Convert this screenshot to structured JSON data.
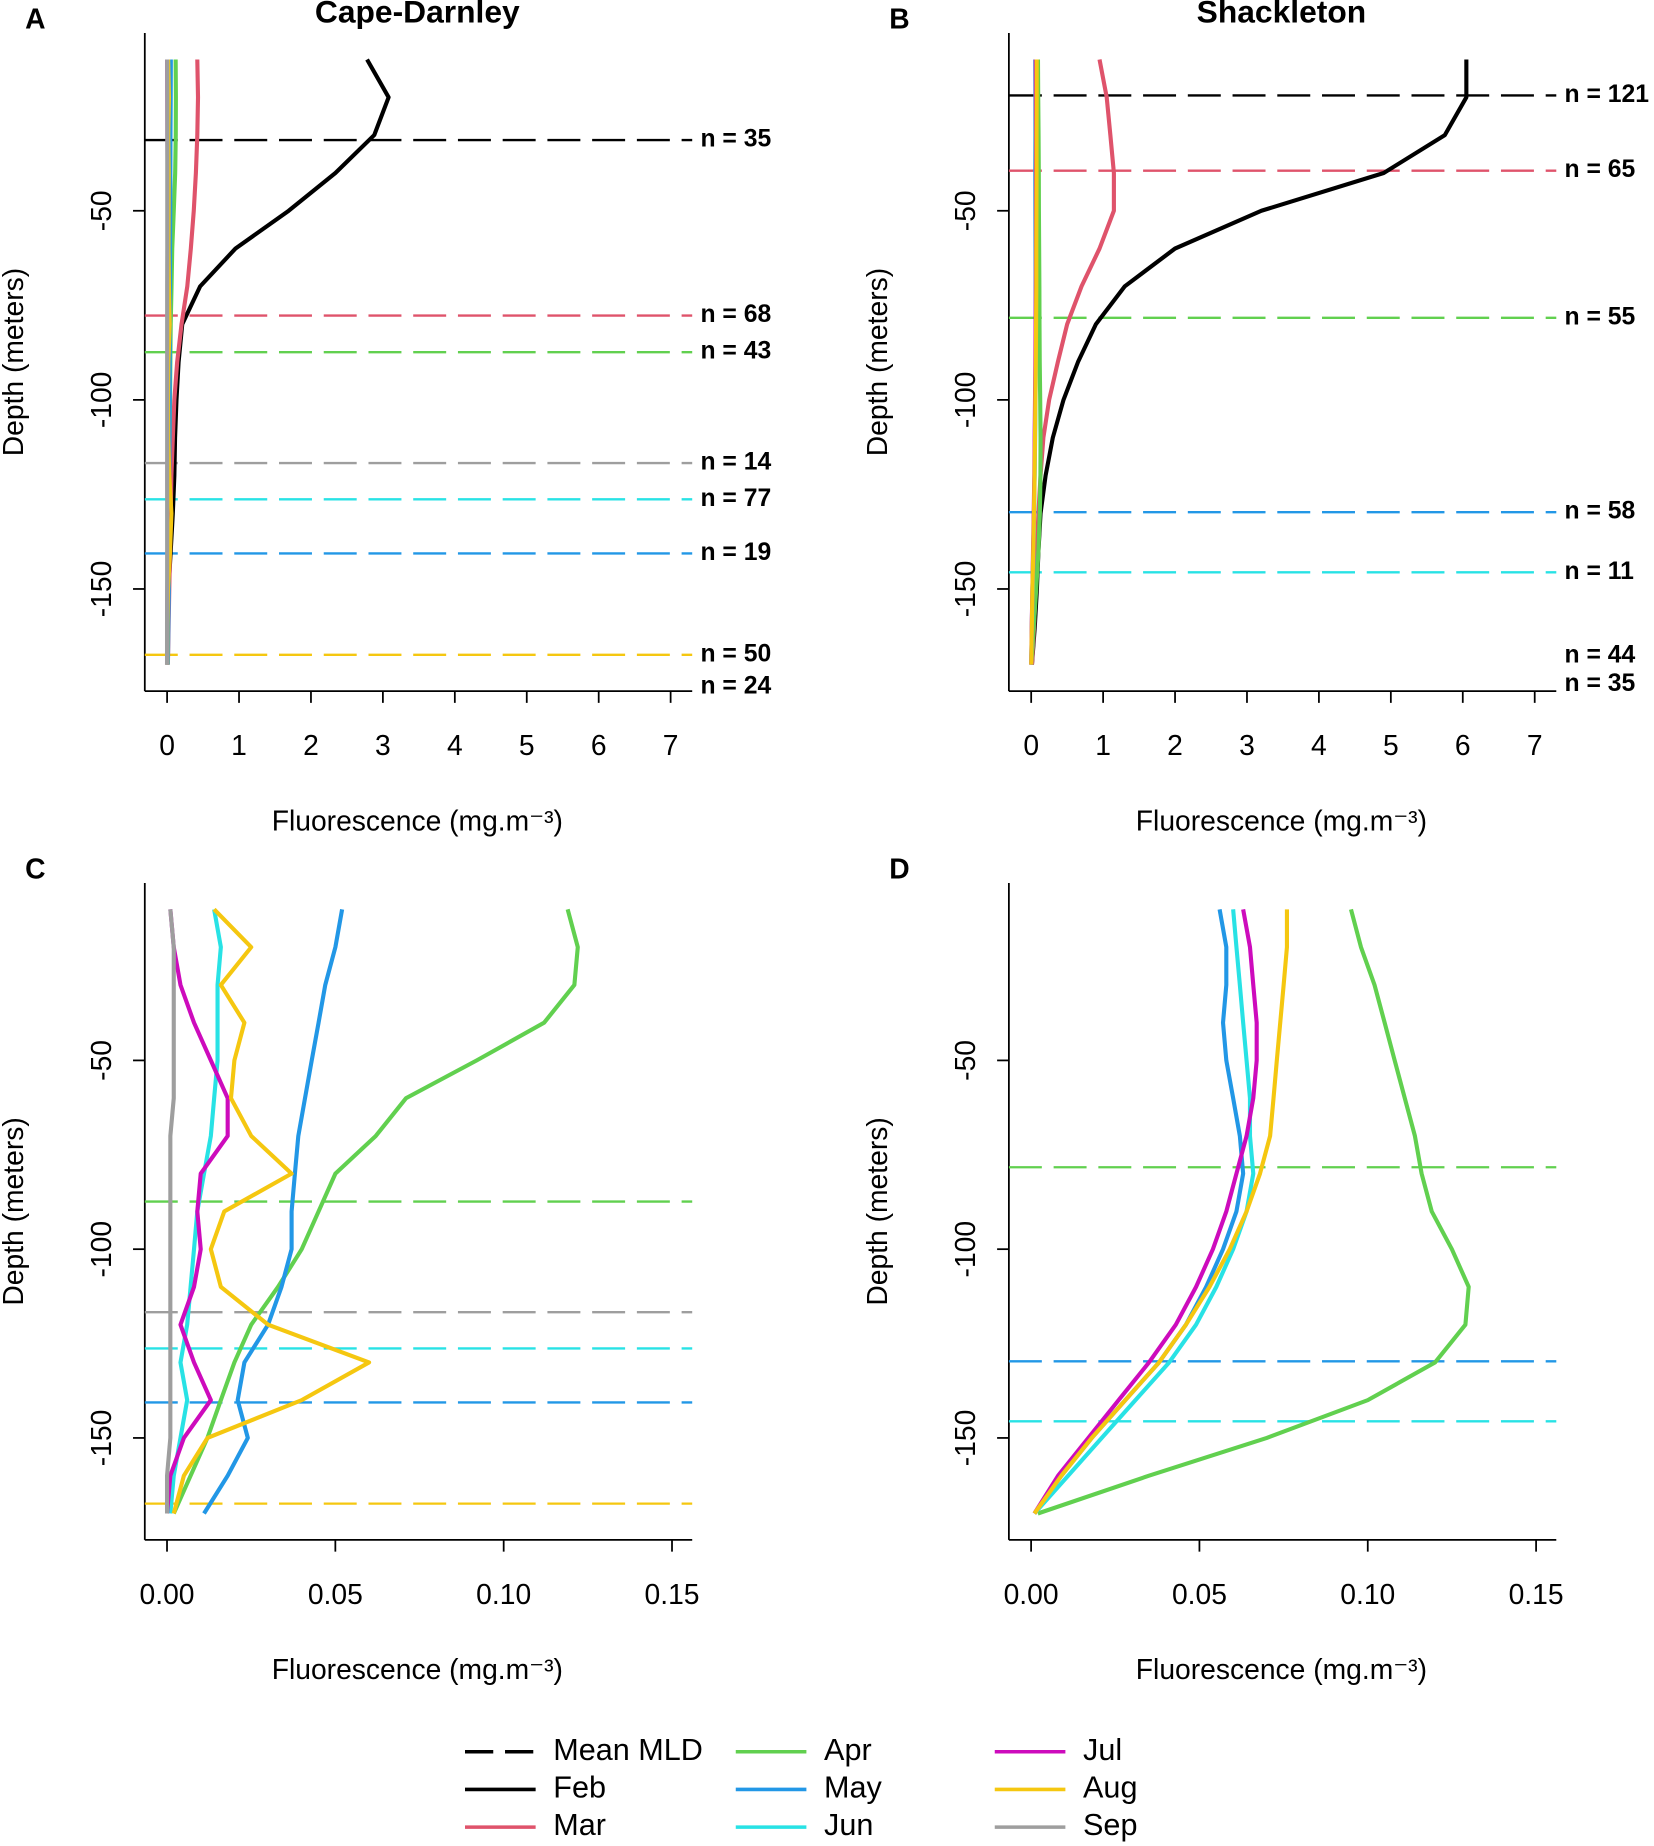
{
  "chart_data": [
    {
      "type": "line",
      "label": "A",
      "title": "Cape-Darnley",
      "xlabel": "Fluorescence (mg.m⁻³)",
      "ylabel": "Depth (meters)",
      "xlim": [
        -0.31,
        7.3
      ],
      "xticks": [
        0,
        1,
        2,
        3,
        4,
        5,
        6,
        7
      ],
      "ylim": [
        -177,
        -3
      ],
      "yticks": [
        -150,
        -100,
        -50
      ],
      "y": [
        -10,
        -20,
        -30,
        -40,
        -50,
        -60,
        -70,
        -80,
        -90,
        -100,
        -110,
        -120,
        -130,
        -140,
        -150,
        -160,
        -170
      ],
      "series": [
        {
          "color": "#000000",
          "values": [
            2.78,
            3.08,
            2.88,
            2.34,
            1.69,
            0.95,
            0.46,
            0.21,
            0.16,
            0.13,
            0.11,
            0.1,
            0.08,
            0.05,
            0.02,
            0.01,
            0.0
          ]
        },
        {
          "color": "#DF536B",
          "values": [
            0.42,
            0.43,
            0.42,
            0.4,
            0.37,
            0.33,
            0.28,
            0.2,
            0.14,
            0.1,
            0.08,
            0.06,
            0.05,
            0.04,
            0.03,
            0.02,
            0.01
          ]
        },
        {
          "color": "#61D04F",
          "values": [
            0.119,
            0.122,
            0.121,
            0.112,
            0.092,
            0.071,
            0.062,
            0.05,
            0.045,
            0.04,
            0.033,
            0.025,
            0.02,
            0.016,
            0.012,
            0.007,
            0.002
          ]
        },
        {
          "color": "#2297E6",
          "values": [
            0.052,
            0.05,
            0.047,
            0.045,
            0.043,
            0.041,
            0.039,
            0.038,
            0.037,
            0.037,
            0.034,
            0.03,
            0.023,
            0.021,
            0.024,
            0.018,
            0.011
          ]
        },
        {
          "color": "#28E2E5",
          "values": [
            0.014,
            0.016,
            0.015,
            0.015,
            0.015,
            0.014,
            0.013,
            0.011,
            0.009,
            0.008,
            0.007,
            0.006,
            0.004,
            0.006,
            0.004,
            0.002,
            0.001
          ]
        },
        {
          "color": "#CD0BBC",
          "values": [
            0.001,
            0.002,
            0.004,
            0.008,
            0.013,
            0.018,
            0.018,
            0.01,
            0.009,
            0.01,
            0.008,
            0.004,
            0.008,
            0.013,
            0.005,
            0.001,
            0.0
          ]
        },
        {
          "color": "#F5C710",
          "values": [
            0.014,
            0.025,
            0.016,
            0.023,
            0.02,
            0.019,
            0.025,
            0.037,
            0.017,
            0.013,
            0.016,
            0.03,
            0.06,
            0.04,
            0.012,
            0.005,
            0.002
          ]
        },
        {
          "color": "#9E9E9E",
          "values": [
            0.001,
            0.002,
            0.002,
            0.002,
            0.002,
            0.002,
            0.001,
            0.001,
            0.001,
            0.001,
            0.001,
            0.001,
            0.001,
            0.001,
            0.001,
            0.0,
            0.0
          ]
        }
      ],
      "mld": [
        {
          "color": "#000000",
          "depth": -31.3,
          "label": "n = 35"
        },
        {
          "color": "#DF536B",
          "depth": -77.7,
          "label": "n = 68"
        },
        {
          "color": "#61D04F",
          "depth": -87.4,
          "label": "n = 43"
        },
        {
          "color": "#9E9E9E",
          "depth": -116.7,
          "label": "n = 14"
        },
        {
          "color": "#28E2E5",
          "depth": -126.3,
          "label": "n = 77"
        },
        {
          "color": "#2297E6",
          "depth": -140.6,
          "label": "n = 19"
        },
        {
          "color": "#F5C710",
          "depth": -167.4,
          "label": "n = 50"
        },
        {
          "color": "#CD0BBC",
          "depth": -175.9,
          "label": "n = 24",
          "line": false
        }
      ]
    },
    {
      "type": "line",
      "label": "B",
      "title": "Shackleton",
      "xlabel": "Fluorescence (mg.m⁻³)",
      "ylabel": "Depth (meters)",
      "xlim": [
        -0.31,
        7.3
      ],
      "xticks": [
        0,
        1,
        2,
        3,
        4,
        5,
        6,
        7
      ],
      "ylim": [
        -177,
        -3
      ],
      "yticks": [
        -150,
        -100,
        -50
      ],
      "y": [
        -10,
        -20,
        -30,
        -40,
        -50,
        -60,
        -70,
        -80,
        -90,
        -100,
        -110,
        -120,
        -130,
        -140,
        -150,
        -160,
        -170
      ],
      "series": [
        {
          "color": "#000000",
          "values": [
            6.05,
            6.05,
            5.75,
            4.9,
            3.2,
            2.0,
            1.3,
            0.9,
            0.65,
            0.45,
            0.3,
            0.2,
            0.13,
            0.1,
            0.08,
            0.05,
            0.01
          ]
        },
        {
          "color": "#DF536B",
          "values": [
            0.95,
            1.05,
            1.1,
            1.15,
            1.15,
            0.95,
            0.7,
            0.5,
            0.37,
            0.25,
            0.17,
            0.13,
            0.1,
            0.08,
            0.06,
            0.04,
            0.01
          ]
        },
        {
          "color": "#61D04F",
          "values": [
            0.095,
            0.098,
            0.102,
            0.105,
            0.108,
            0.111,
            0.114,
            0.116,
            0.119,
            0.125,
            0.13,
            0.129,
            0.12,
            0.1,
            0.07,
            0.035,
            0.002
          ]
        },
        {
          "color": "#2297E6",
          "values": [
            0.056,
            0.058,
            0.058,
            0.057,
            0.058,
            0.06,
            0.062,
            0.063,
            0.061,
            0.057,
            0.052,
            0.046,
            0.038,
            0.028,
            0.018,
            0.009,
            0.001
          ]
        },
        {
          "color": "#28E2E5",
          "values": [
            0.06,
            0.061,
            0.062,
            0.063,
            0.064,
            0.065,
            0.065,
            0.066,
            0.064,
            0.06,
            0.055,
            0.049,
            0.041,
            0.031,
            0.021,
            0.011,
            0.001
          ]
        },
        {
          "color": "#CD0BBC",
          "values": [
            0.063,
            0.065,
            0.066,
            0.067,
            0.067,
            0.066,
            0.064,
            0.061,
            0.058,
            0.054,
            0.049,
            0.043,
            0.035,
            0.026,
            0.017,
            0.008,
            0.001
          ]
        },
        {
          "color": "#F5C710",
          "values": [
            0.076,
            0.076,
            0.075,
            0.074,
            0.073,
            0.072,
            0.071,
            0.068,
            0.064,
            0.059,
            0.053,
            0.046,
            0.038,
            0.028,
            0.018,
            0.009,
            0.001
          ]
        }
      ],
      "mld": [
        {
          "color": "#000000",
          "depth": -19.5,
          "label": "n = 121"
        },
        {
          "color": "#DF536B",
          "depth": -39.4,
          "label": "n = 65"
        },
        {
          "color": "#61D04F",
          "depth": -78.3,
          "label": "n = 55"
        },
        {
          "color": "#2297E6",
          "depth": -129.7,
          "label": "n = 58"
        },
        {
          "color": "#28E2E5",
          "depth": -145.6,
          "label": "n = 11"
        },
        {
          "color": "#CD0BBC",
          "depth": -167.7,
          "label": "n = 44",
          "line": false
        },
        {
          "color": "#F5C710",
          "depth": -175.2,
          "label": "n = 35",
          "line": false
        }
      ]
    },
    {
      "type": "line",
      "label": "C",
      "xlabel": "Fluorescence (mg.m⁻³)",
      "ylabel": "Depth (meters)",
      "xlim": [
        -0.0066,
        0.156
      ],
      "xticks": [
        {
          "value": 0,
          "label": "0.00"
        },
        {
          "value": 0.05,
          "label": "0.05"
        },
        {
          "value": 0.1,
          "label": "0.10"
        },
        {
          "value": 0.15,
          "label": "0.15"
        }
      ],
      "ylim": [
        -177,
        -3
      ],
      "yticks": [
        -150,
        -100,
        -50
      ],
      "y": [
        -10,
        -20,
        -30,
        -40,
        -50,
        -60,
        -70,
        -80,
        -90,
        -100,
        -110,
        -120,
        -130,
        -140,
        -150,
        -160,
        -170
      ],
      "series": [
        {
          "color": "#61D04F",
          "values": [
            0.119,
            0.122,
            0.121,
            0.112,
            0.092,
            0.071,
            0.062,
            0.05,
            0.045,
            0.04,
            0.033,
            0.025,
            0.02,
            0.016,
            0.012,
            0.007,
            0.002
          ]
        },
        {
          "color": "#2297E6",
          "values": [
            0.052,
            0.05,
            0.047,
            0.045,
            0.043,
            0.041,
            0.039,
            0.038,
            0.037,
            0.037,
            0.034,
            0.03,
            0.023,
            0.021,
            0.024,
            0.018,
            0.011
          ]
        },
        {
          "color": "#28E2E5",
          "values": [
            0.014,
            0.016,
            0.015,
            0.015,
            0.015,
            0.014,
            0.013,
            0.011,
            0.009,
            0.008,
            0.007,
            0.006,
            0.004,
            0.006,
            0.004,
            0.002,
            0.001
          ]
        },
        {
          "color": "#CD0BBC",
          "values": [
            0.001,
            0.002,
            0.004,
            0.008,
            0.013,
            0.018,
            0.018,
            0.01,
            0.009,
            0.01,
            0.008,
            0.004,
            0.008,
            0.013,
            0.005,
            0.001,
            0.0
          ]
        },
        {
          "color": "#F5C710",
          "values": [
            0.014,
            0.025,
            0.016,
            0.023,
            0.02,
            0.019,
            0.025,
            0.037,
            0.017,
            0.013,
            0.016,
            0.03,
            0.06,
            0.04,
            0.012,
            0.005,
            0.002
          ]
        },
        {
          "color": "#9E9E9E",
          "values": [
            0.001,
            0.002,
            0.002,
            0.002,
            0.002,
            0.002,
            0.001,
            0.001,
            0.001,
            0.001,
            0.001,
            0.001,
            0.001,
            0.001,
            0.001,
            0.0,
            0.0
          ]
        }
      ],
      "mld": [
        {
          "color": "#61D04F",
          "depth": -87.4
        },
        {
          "color": "#9E9E9E",
          "depth": -116.7
        },
        {
          "color": "#28E2E5",
          "depth": -126.3
        },
        {
          "color": "#2297E6",
          "depth": -140.6
        },
        {
          "color": "#F5C710",
          "depth": -167.4
        }
      ]
    },
    {
      "type": "line",
      "label": "D",
      "xlabel": "Fluorescence (mg.m⁻³)",
      "ylabel": "Depth (meters)",
      "xlim": [
        -0.0066,
        0.156
      ],
      "xticks": [
        {
          "value": 0,
          "label": "0.00"
        },
        {
          "value": 0.05,
          "label": "0.05"
        },
        {
          "value": 0.1,
          "label": "0.10"
        },
        {
          "value": 0.15,
          "label": "0.15"
        }
      ],
      "ylim": [
        -177,
        -3
      ],
      "yticks": [
        -150,
        -100,
        -50
      ],
      "y": [
        -10,
        -20,
        -30,
        -40,
        -50,
        -60,
        -70,
        -80,
        -90,
        -100,
        -110,
        -120,
        -130,
        -140,
        -150,
        -160,
        -170
      ],
      "series": [
        {
          "color": "#61D04F",
          "values": [
            0.095,
            0.098,
            0.102,
            0.105,
            0.108,
            0.111,
            0.114,
            0.116,
            0.119,
            0.125,
            0.13,
            0.129,
            0.12,
            0.1,
            0.07,
            0.035,
            0.002
          ]
        },
        {
          "color": "#2297E6",
          "values": [
            0.056,
            0.058,
            0.058,
            0.057,
            0.058,
            0.06,
            0.062,
            0.063,
            0.061,
            0.057,
            0.052,
            0.046,
            0.038,
            0.028,
            0.018,
            0.009,
            0.001
          ]
        },
        {
          "color": "#28E2E5",
          "values": [
            0.06,
            0.061,
            0.062,
            0.063,
            0.064,
            0.065,
            0.065,
            0.066,
            0.064,
            0.06,
            0.055,
            0.049,
            0.041,
            0.031,
            0.021,
            0.011,
            0.001
          ]
        },
        {
          "color": "#CD0BBC",
          "values": [
            0.063,
            0.065,
            0.066,
            0.067,
            0.067,
            0.066,
            0.064,
            0.061,
            0.058,
            0.054,
            0.049,
            0.043,
            0.035,
            0.026,
            0.017,
            0.008,
            0.001
          ]
        },
        {
          "color": "#F5C710",
          "values": [
            0.076,
            0.076,
            0.075,
            0.074,
            0.073,
            0.072,
            0.071,
            0.068,
            0.064,
            0.059,
            0.053,
            0.046,
            0.038,
            0.028,
            0.018,
            0.009,
            0.001
          ]
        }
      ],
      "mld": [
        {
          "color": "#61D04F",
          "depth": -78.3
        },
        {
          "color": "#2297E6",
          "depth": -129.7
        },
        {
          "color": "#28E2E5",
          "depth": -145.6
        }
      ]
    }
  ],
  "legend": [
    {
      "name": "Mean MLD",
      "color": "#000000",
      "dash": true
    },
    {
      "name": "Feb",
      "color": "#000000"
    },
    {
      "name": "Mar",
      "color": "#DF536B"
    },
    {
      "name": "Apr",
      "color": "#61D04F"
    },
    {
      "name": "May",
      "color": "#2297E6"
    },
    {
      "name": "Jun",
      "color": "#28E2E5"
    },
    {
      "name": "Jul",
      "color": "#CD0BBC"
    },
    {
      "name": "Aug",
      "color": "#F5C710"
    },
    {
      "name": "Sep",
      "color": "#9E9E9E"
    }
  ]
}
